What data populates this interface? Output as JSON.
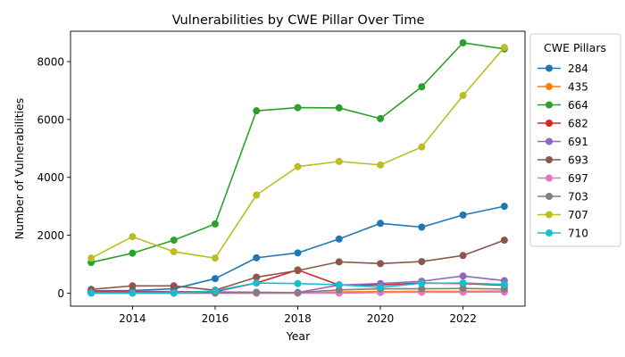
{
  "chart_data": {
    "type": "line",
    "title": "Vulnerabilities by CWE Pillar Over Time",
    "xlabel": "Year",
    "ylabel": "Number of Vulnerabilities",
    "x": [
      2013,
      2014,
      2015,
      2016,
      2017,
      2018,
      2019,
      2020,
      2021,
      2022,
      2023
    ],
    "xlim": [
      2012.5,
      2023.5
    ],
    "ylim": [
      -450,
      9050
    ],
    "xticks": [
      2014,
      2016,
      2018,
      2020,
      2022
    ],
    "yticks": [
      0,
      2000,
      4000,
      6000,
      8000
    ],
    "grid": false,
    "legend": {
      "title": "CWE Pillars",
      "placement": "outside-right"
    },
    "series": [
      {
        "name": "284",
        "color": "#1f77b4",
        "values": [
          80,
          90,
          150,
          500,
          1220,
          1390,
          1870,
          2410,
          2280,
          2700,
          3000
        ]
      },
      {
        "name": "435",
        "color": "#ff7f0e",
        "values": [
          0,
          0,
          0,
          0,
          0,
          0,
          40,
          50,
          60,
          60,
          70
        ]
      },
      {
        "name": "664",
        "color": "#2ca02c",
        "values": [
          1060,
          1380,
          1830,
          2390,
          6300,
          6410,
          6400,
          6030,
          7130,
          8650,
          8440
        ]
      },
      {
        "name": "682",
        "color": "#d62728",
        "values": [
          50,
          60,
          50,
          50,
          350,
          800,
          280,
          280,
          350,
          330,
          270
        ]
      },
      {
        "name": "691",
        "color": "#9467bd",
        "values": [
          30,
          30,
          40,
          40,
          30,
          20,
          280,
          330,
          410,
          590,
          430
        ]
      },
      {
        "name": "693",
        "color": "#8c564b",
        "values": [
          130,
          250,
          250,
          100,
          550,
          780,
          1080,
          1020,
          1090,
          1300,
          1830
        ]
      },
      {
        "name": "697",
        "color": "#e377c2",
        "values": [
          0,
          0,
          0,
          0,
          0,
          0,
          0,
          20,
          30,
          30,
          40
        ]
      },
      {
        "name": "703",
        "color": "#7f7f7f",
        "values": [
          10,
          10,
          10,
          10,
          20,
          20,
          110,
          150,
          150,
          160,
          140
        ]
      },
      {
        "name": "707",
        "color": "#bcbd22",
        "values": [
          1210,
          1950,
          1430,
          1210,
          3390,
          4370,
          4550,
          4430,
          5050,
          6830,
          8490
        ]
      },
      {
        "name": "710",
        "color": "#17becf",
        "values": [
          0,
          0,
          0,
          80,
          350,
          330,
          290,
          200,
          340,
          350,
          300
        ]
      }
    ]
  }
}
